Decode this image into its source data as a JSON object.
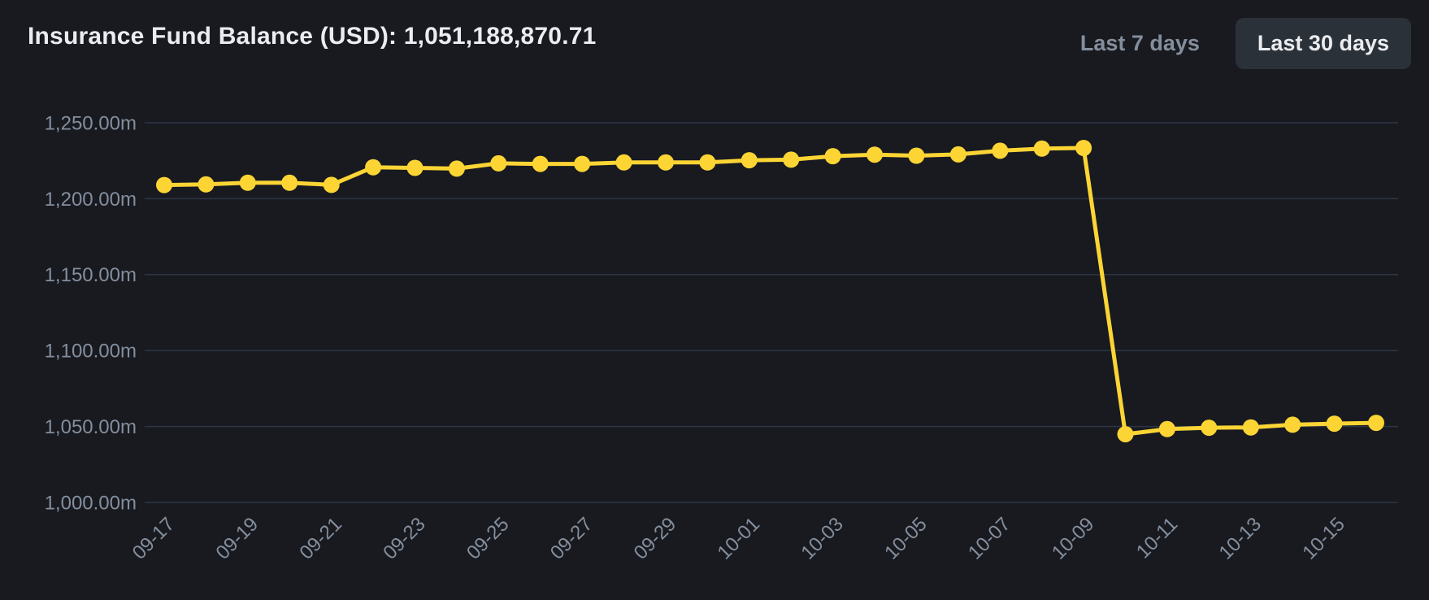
{
  "header": {
    "title": "Insurance Fund Balance (USD): 1,051,188,870.71"
  },
  "tabs": [
    {
      "label": "Last 7 days",
      "active": false
    },
    {
      "label": "Last 30 days",
      "active": true
    }
  ],
  "colors": {
    "background": "#181A20",
    "gridline": "#2E3444",
    "axis_label": "#848E9C",
    "title_text": "#EAECEF",
    "line": "#FCD535",
    "dot": "#FCD535",
    "active_tab_bg": "#2B3139",
    "active_tab_text": "#EAECEF",
    "inactive_tab_text": "#848E9C"
  },
  "chart_data": {
    "type": "line",
    "title": "Insurance Fund Balance (USD): 1,051,188,870.71",
    "series_name": "Insurance Fund Balance (USD)",
    "unit": "m",
    "x": [
      "09-17",
      "09-18",
      "09-19",
      "09-20",
      "09-21",
      "09-22",
      "09-23",
      "09-24",
      "09-25",
      "09-26",
      "09-27",
      "09-28",
      "09-29",
      "09-30",
      "10-01",
      "10-02",
      "10-03",
      "10-04",
      "10-05",
      "10-06",
      "10-07",
      "10-08",
      "10-09",
      "10-10",
      "10-11",
      "10-12",
      "10-13",
      "10-14",
      "10-15",
      "10-16"
    ],
    "values": [
      1209.0,
      1209.4,
      1210.5,
      1210.5,
      1209.1,
      1220.7,
      1220.3,
      1219.8,
      1223.3,
      1222.9,
      1222.9,
      1223.9,
      1223.9,
      1223.9,
      1225.3,
      1225.7,
      1228.0,
      1229.0,
      1228.3,
      1229.2,
      1231.6,
      1233.0,
      1233.4,
      1044.9,
      1048.3,
      1049.2,
      1049.4,
      1051.2,
      1051.9,
      1052.4
    ],
    "ylim": [
      1000,
      1250
    ],
    "yticks": [
      1250,
      1200,
      1150,
      1100,
      1050,
      1000
    ],
    "ytick_labels": [
      "1,250.00m",
      "1,200.00m",
      "1,150.00m",
      "1,100.00m",
      "1,050.00m",
      "1,000.00m"
    ],
    "xtick_labels": [
      "09-17",
      "09-19",
      "09-21",
      "09-23",
      "09-25",
      "09-27",
      "09-29",
      "10-01",
      "10-03",
      "10-05",
      "10-07",
      "10-09",
      "10-11",
      "10-13",
      "10-15"
    ],
    "xtick_every": 2,
    "grid": true,
    "legend_position": "none",
    "marker": "circle"
  }
}
